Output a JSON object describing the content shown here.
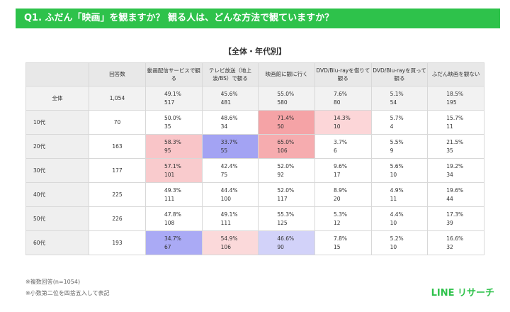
{
  "header": {
    "title": "Q1. ふだん「映画」を観ますか？ 観る人は、どんな方法で観ていますか？",
    "subtitle": "【全体・年代別】"
  },
  "table": {
    "columns": [
      "",
      "回答数",
      "動画配信サービスで観る",
      "テレビ放送（地上波/BS）で観る",
      "映画館に観に行く",
      "DVD/Blu-rayを借りて観る",
      "DVD/Blu-rayを買って観る",
      "ふだん映画を観ない"
    ],
    "rows": [
      {
        "label": "全体",
        "count": "1,054",
        "cells": [
          {
            "pct": "49.1%",
            "n": "517"
          },
          {
            "pct": "45.6%",
            "n": "481"
          },
          {
            "pct": "55.0%",
            "n": "580"
          },
          {
            "pct": "7.6%",
            "n": "80"
          },
          {
            "pct": "5.1%",
            "n": "54"
          },
          {
            "pct": "18.5%",
            "n": "195"
          }
        ]
      },
      {
        "label": "10代",
        "count": "70",
        "cells": [
          {
            "pct": "50.0%",
            "n": "35"
          },
          {
            "pct": "48.6%",
            "n": "34"
          },
          {
            "pct": "71.4%",
            "n": "50",
            "color": "#f5a3a6"
          },
          {
            "pct": "14.3%",
            "n": "10",
            "color": "#fcd6d8"
          },
          {
            "pct": "5.7%",
            "n": "4"
          },
          {
            "pct": "15.7%",
            "n": "11"
          }
        ]
      },
      {
        "label": "20代",
        "count": "163",
        "cells": [
          {
            "pct": "58.3%",
            "n": "95",
            "color": "#f9c5c8"
          },
          {
            "pct": "33.7%",
            "n": "55",
            "color": "#a3a3f3"
          },
          {
            "pct": "65.0%",
            "n": "106",
            "color": "#f6acaf"
          },
          {
            "pct": "3.7%",
            "n": "6"
          },
          {
            "pct": "5.5%",
            "n": "9"
          },
          {
            "pct": "21.5%",
            "n": "35"
          }
        ]
      },
      {
        "label": "30代",
        "count": "177",
        "cells": [
          {
            "pct": "57.1%",
            "n": "101",
            "color": "#f9cbcd"
          },
          {
            "pct": "42.4%",
            "n": "75"
          },
          {
            "pct": "52.0%",
            "n": "92"
          },
          {
            "pct": "9.6%",
            "n": "17"
          },
          {
            "pct": "5.6%",
            "n": "10"
          },
          {
            "pct": "19.2%",
            "n": "34"
          }
        ]
      },
      {
        "label": "40代",
        "count": "225",
        "cells": [
          {
            "pct": "49.3%",
            "n": "111"
          },
          {
            "pct": "44.4%",
            "n": "100"
          },
          {
            "pct": "52.0%",
            "n": "117"
          },
          {
            "pct": "8.9%",
            "n": "20"
          },
          {
            "pct": "4.9%",
            "n": "11"
          },
          {
            "pct": "19.6%",
            "n": "44"
          }
        ]
      },
      {
        "label": "50代",
        "count": "226",
        "cells": [
          {
            "pct": "47.8%",
            "n": "108"
          },
          {
            "pct": "49.1%",
            "n": "111"
          },
          {
            "pct": "55.3%",
            "n": "125"
          },
          {
            "pct": "5.3%",
            "n": "12"
          },
          {
            "pct": "4.4%",
            "n": "10"
          },
          {
            "pct": "17.3%",
            "n": "39"
          }
        ]
      },
      {
        "label": "60代",
        "count": "193",
        "cells": [
          {
            "pct": "34.7%",
            "n": "67",
            "color": "#aaaaf5"
          },
          {
            "pct": "54.9%",
            "n": "106",
            "color": "#fbd9da"
          },
          {
            "pct": "46.6%",
            "n": "90",
            "color": "#d2d2f9"
          },
          {
            "pct": "7.8%",
            "n": "15"
          },
          {
            "pct": "5.2%",
            "n": "10"
          },
          {
            "pct": "16.6%",
            "n": "32"
          }
        ]
      }
    ]
  },
  "notes": [
    "※複数回答(n=1054)",
    "※小数第二位を四捨五入して表記"
  ],
  "logo": "LINE リサーチ"
}
